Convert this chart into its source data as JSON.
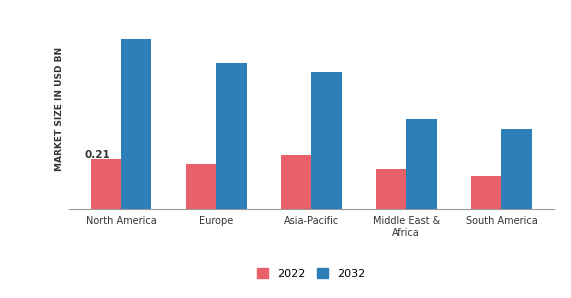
{
  "categories": [
    "North America",
    "Europe",
    "Asia-Pacific",
    "Middle East &\nAfrica",
    "South America"
  ],
  "values_2022": [
    0.21,
    0.19,
    0.23,
    0.17,
    0.14
  ],
  "values_2032": [
    0.72,
    0.62,
    0.58,
    0.38,
    0.34
  ],
  "color_2022": "#E8606A",
  "color_2032": "#2E7FB8",
  "ylabel": "MARKET SIZE IN USD BN",
  "annotation_text": "0.21",
  "bar_width": 0.32,
  "ylim": [
    0,
    0.85
  ],
  "legend_labels": [
    "2022",
    "2032"
  ],
  "background_color": "#ffffff",
  "figsize": [
    5.71,
    2.98
  ],
  "dpi": 100
}
